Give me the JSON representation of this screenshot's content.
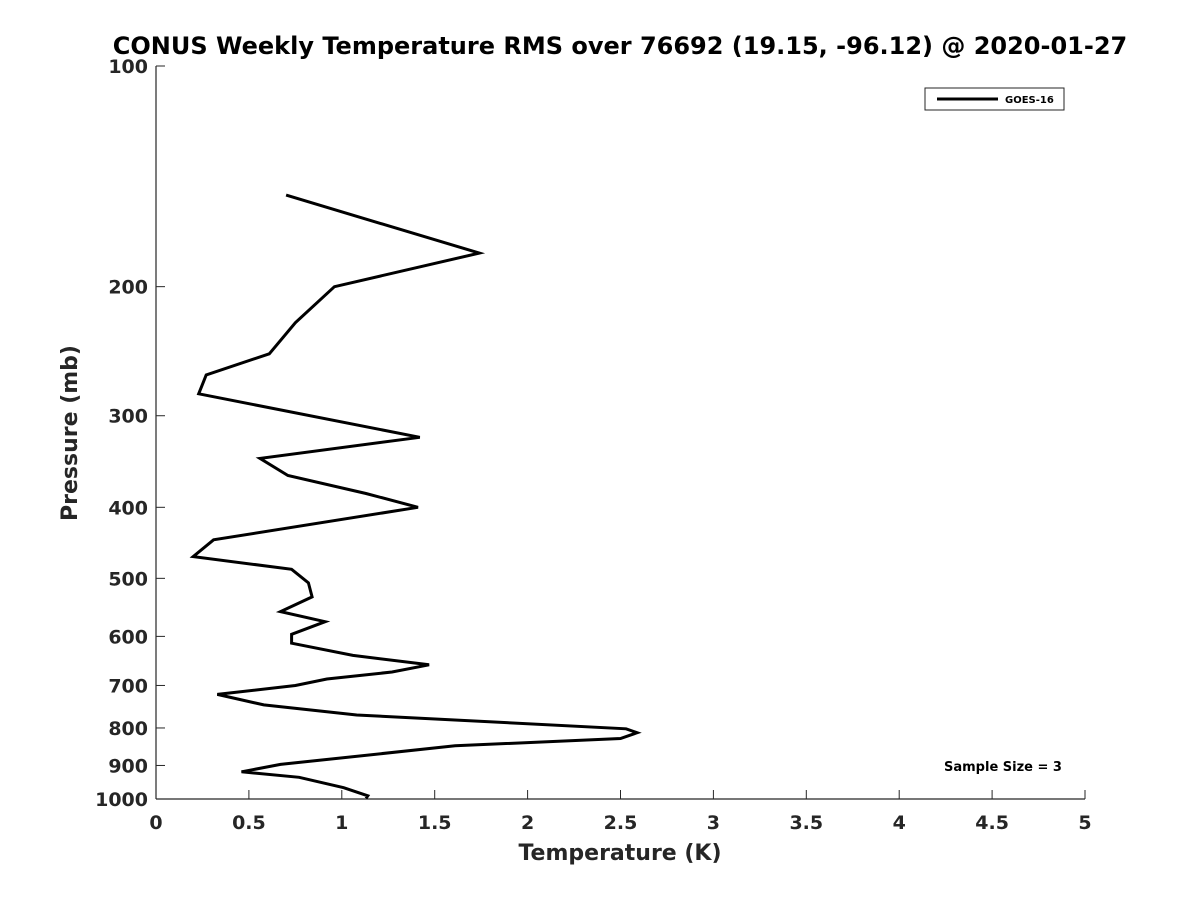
{
  "chart_data": {
    "type": "line",
    "title": "CONUS Weekly Temperature RMS over 76692 (19.15, -96.12) @ 2020-01-27",
    "xlabel": "Temperature (K)",
    "ylabel": "Pressure (mb)",
    "xlim": [
      0,
      5
    ],
    "ylim": [
      100,
      1000
    ],
    "y_scale": "log",
    "y_reversed": true,
    "grid": false,
    "legend_position": "top-right",
    "x_ticks": [
      "0",
      "0.5",
      "1",
      "1.5",
      "2",
      "2.5",
      "3",
      "3.5",
      "4",
      "4.5",
      "5"
    ],
    "y_ticks": [
      "100",
      "200",
      "300",
      "400",
      "500",
      "600",
      "700",
      "800",
      "900",
      "1000"
    ],
    "series": [
      {
        "name": "GOES-16",
        "color": "#000000",
        "points": [
          {
            "x": 0.7,
            "p": 150
          },
          {
            "x": 1.74,
            "p": 180
          },
          {
            "x": 0.96,
            "p": 200
          },
          {
            "x": 0.75,
            "p": 224
          },
          {
            "x": 0.61,
            "p": 247
          },
          {
            "x": 0.27,
            "p": 264
          },
          {
            "x": 0.23,
            "p": 280
          },
          {
            "x": 1.42,
            "p": 321
          },
          {
            "x": 0.56,
            "p": 343
          },
          {
            "x": 0.71,
            "p": 362
          },
          {
            "x": 1.13,
            "p": 383
          },
          {
            "x": 1.41,
            "p": 400
          },
          {
            "x": 0.31,
            "p": 443
          },
          {
            "x": 0.2,
            "p": 467
          },
          {
            "x": 0.73,
            "p": 486
          },
          {
            "x": 0.82,
            "p": 507
          },
          {
            "x": 0.84,
            "p": 530
          },
          {
            "x": 0.67,
            "p": 555
          },
          {
            "x": 0.91,
            "p": 573
          },
          {
            "x": 0.73,
            "p": 596
          },
          {
            "x": 0.73,
            "p": 613
          },
          {
            "x": 1.06,
            "p": 637
          },
          {
            "x": 1.47,
            "p": 656
          },
          {
            "x": 1.27,
            "p": 671
          },
          {
            "x": 0.92,
            "p": 686
          },
          {
            "x": 0.75,
            "p": 700
          },
          {
            "x": 0.33,
            "p": 720
          },
          {
            "x": 0.58,
            "p": 744
          },
          {
            "x": 1.08,
            "p": 768
          },
          {
            "x": 2.53,
            "p": 802
          },
          {
            "x": 2.59,
            "p": 812
          },
          {
            "x": 2.5,
            "p": 827
          },
          {
            "x": 1.61,
            "p": 846
          },
          {
            "x": 0.67,
            "p": 897
          },
          {
            "x": 0.46,
            "p": 918
          },
          {
            "x": 0.77,
            "p": 934
          },
          {
            "x": 1.01,
            "p": 965
          },
          {
            "x": 1.14,
            "p": 990
          },
          {
            "x": 1.13,
            "p": 998
          }
        ]
      }
    ],
    "legend": [
      "GOES-16"
    ],
    "annotation": "Sample Size = 3"
  }
}
